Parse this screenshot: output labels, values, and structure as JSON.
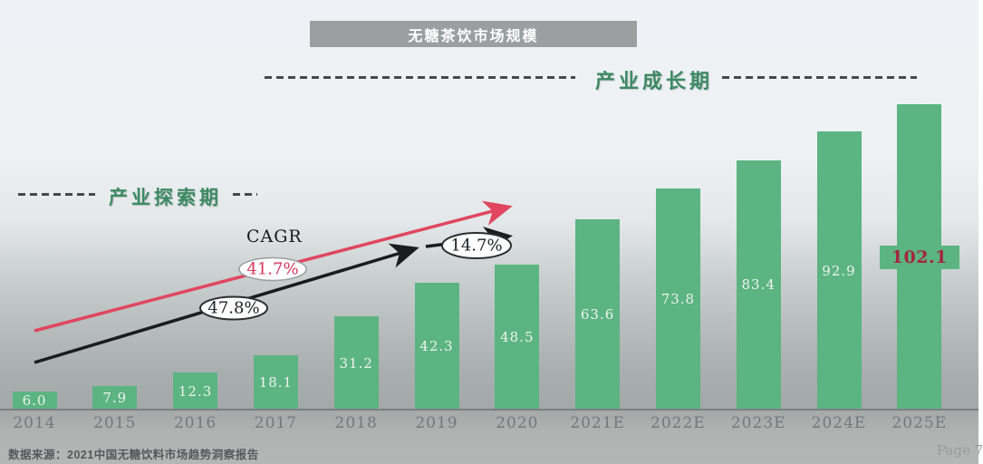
{
  "chart_data": {
    "type": "bar",
    "title": "无糖茶饮市场规模",
    "categories": [
      "2014",
      "2015",
      "2016",
      "2017",
      "2018",
      "2019",
      "2020",
      "2021E",
      "2022E",
      "2023E",
      "2024E",
      "2025E"
    ],
    "values": [
      6.0,
      7.9,
      12.3,
      18.1,
      31.2,
      42.3,
      48.5,
      63.6,
      73.8,
      83.4,
      92.9,
      102.1
    ],
    "highlight_index": 11,
    "ylim": [
      0,
      110
    ],
    "grid": false,
    "legend": "none",
    "phase_labels": {
      "exploration": "产业探索期",
      "growth": "产业成长期"
    },
    "cagr": {
      "label": "CAGR",
      "red_annotation": "41.7%",
      "black_annotation": "47.8%",
      "late_annotation": "14.7%"
    },
    "source": "数据来源：2021中国无糖饮料市场趋势洞察报告",
    "page": "Page 7",
    "colors": {
      "bar": "#5cb483",
      "value_label": "#eef3ee",
      "highlight_value": "#a32640",
      "red_line": "#e0475f",
      "black_line": "#1a1d1e",
      "phase_text": "#3d8a63",
      "title_bar_bg": "#9b9fa0",
      "title_text": "#ffffff",
      "axis_label": "#73797a"
    }
  }
}
